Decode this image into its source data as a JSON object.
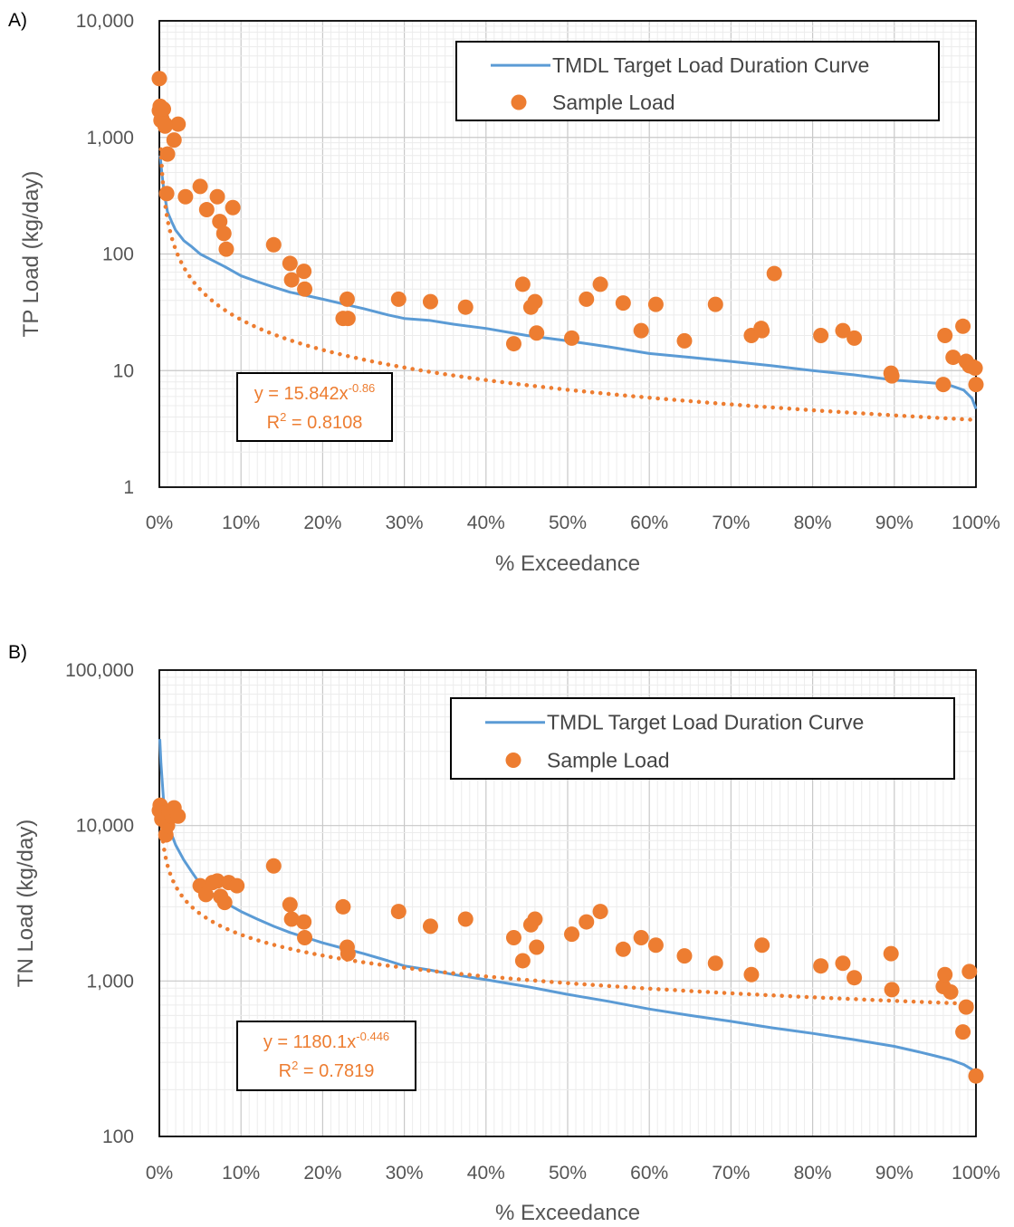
{
  "colors": {
    "curve": "#5B9BD5",
    "sample": "#ED7D31",
    "grid": "#d9d9d9",
    "border": "#000000",
    "text": "#555555"
  },
  "chart_data": [
    {
      "type": "scatter",
      "panel_label": "A)",
      "xlabel": "% Exceedance",
      "ylabel": "TP Load (kg/day)",
      "xlim": [
        0,
        100
      ],
      "ylim": [
        1,
        10000
      ],
      "yscale": "log",
      "grid": true,
      "x_ticks": [
        "0%",
        "10%",
        "20%",
        "30%",
        "40%",
        "50%",
        "60%",
        "70%",
        "80%",
        "90%",
        "100%"
      ],
      "y_ticks": [
        "1",
        "10",
        "100",
        "1,000",
        "10,000"
      ],
      "legend": {
        "position": "top-right",
        "entries": [
          "TMDL Target Load Duration Curve",
          "Sample Load"
        ]
      },
      "equation": {
        "prefix": "y = 15.842x",
        "exponent": "-0.86",
        "r2_prefix": "R",
        "r2_exp": "2",
        "r2_value": " = 0.8108"
      },
      "trendline": {
        "a": 15.842,
        "b": -0.86
      },
      "series": [
        {
          "name": "TMDL Target Load Duration Curve",
          "kind": "line",
          "x": [
            0.1,
            0.3,
            0.6,
            1,
            1.5,
            2,
            3,
            4,
            5,
            6,
            8,
            10,
            12,
            14,
            16,
            18,
            20,
            22,
            25,
            28,
            30,
            33,
            36,
            40,
            45,
            50,
            55,
            60,
            65,
            70,
            75,
            80,
            85,
            90,
            93,
            95,
            97,
            98.5,
            99.5,
            100
          ],
          "y": [
            700,
            500,
            330,
            230,
            190,
            160,
            130,
            115,
            100,
            92,
            78,
            65,
            58,
            52,
            47,
            44,
            41,
            38,
            34,
            30,
            28,
            27,
            25,
            23,
            20,
            18,
            16,
            14,
            13,
            12,
            11,
            10,
            9.2,
            8.3,
            8,
            7.8,
            7.4,
            6.8,
            5.8,
            4.7
          ]
        },
        {
          "name": "Sample Load",
          "kind": "points",
          "x": [
            0,
            0,
            0.1,
            0.2,
            0.3,
            0.5,
            0.7,
            0.9,
            1,
            1.8,
            2.3,
            0.7,
            3.2,
            5,
            5.8,
            7.1,
            7.4,
            7.9,
            8.2,
            9,
            14,
            16,
            16.2,
            17.7,
            17.8,
            22.5,
            23,
            23.1,
            29.3,
            33.2,
            37.5,
            43.4,
            44.5,
            45.5,
            46,
            46.2,
            50.5,
            52.3,
            54,
            56.8,
            59,
            60.8,
            64.3,
            68.1,
            72.5,
            73.7,
            73.8,
            75.3,
            81,
            83.7,
            85.1,
            89.6,
            89.7,
            96,
            96.2,
            97.2,
            98.4,
            98.8,
            99.2,
            99.6,
            99.9,
            100
          ],
          "y": [
            3200,
            1700,
            1850,
            1400,
            1450,
            1750,
            1250,
            330,
            720,
            950,
            1300,
            1300,
            310,
            380,
            240,
            310,
            190,
            150,
            110,
            250,
            120,
            83,
            60,
            71,
            50,
            28,
            41,
            28,
            41,
            39,
            35,
            17,
            55,
            35,
            39,
            21,
            19,
            41,
            55,
            38,
            22,
            37,
            18,
            37,
            20,
            23,
            22,
            68,
            20,
            22,
            19,
            9.5,
            9,
            7.6,
            20,
            13,
            24,
            12,
            11,
            10.8,
            10.5,
            7.6
          ]
        }
      ]
    },
    {
      "type": "scatter",
      "panel_label": "B)",
      "xlabel": "% Exceedance",
      "ylabel": "TN Load (kg/day)",
      "xlim": [
        0,
        100
      ],
      "ylim": [
        100,
        100000
      ],
      "yscale": "log",
      "grid": true,
      "x_ticks": [
        "0%",
        "10%",
        "20%",
        "30%",
        "40%",
        "50%",
        "60%",
        "70%",
        "80%",
        "90%",
        "100%"
      ],
      "y_ticks": [
        "100",
        "1,000",
        "10,000",
        "100,000"
      ],
      "legend": {
        "position": "top-right",
        "entries": [
          "TMDL Target Load Duration Curve",
          "Sample Load"
        ]
      },
      "equation": {
        "prefix": "y = 1180.1x",
        "exponent": "-0.446",
        "r2_prefix": "R",
        "r2_exp": "2",
        "r2_value": " = 0.7819"
      },
      "trendline": {
        "a": 1180.1,
        "b": -0.446
      },
      "series": [
        {
          "name": "TMDL Target Load Duration Curve",
          "kind": "line",
          "x": [
            0.05,
            0.2,
            0.5,
            1,
            1.5,
            2,
            3,
            4,
            5,
            6,
            8,
            10,
            12,
            14,
            16,
            18,
            20,
            22,
            25,
            28,
            30,
            33,
            36,
            40,
            45,
            50,
            55,
            60,
            65,
            70,
            75,
            80,
            85,
            90,
            93,
            95,
            97,
            98.5,
            99.5,
            100
          ],
          "y": [
            36000,
            25000,
            15000,
            10500,
            8800,
            7500,
            6000,
            5000,
            4200,
            3800,
            3200,
            2800,
            2500,
            2250,
            2050,
            1900,
            1760,
            1650,
            1500,
            1350,
            1250,
            1180,
            1100,
            1020,
            920,
            820,
            740,
            660,
            600,
            550,
            500,
            460,
            420,
            380,
            350,
            330,
            310,
            290,
            270,
            245
          ]
        },
        {
          "name": "Sample Load",
          "kind": "points",
          "x": [
            0,
            0.1,
            0.3,
            0.5,
            0.8,
            1,
            1.2,
            1.5,
            1.8,
            2.3,
            5,
            5.7,
            6.5,
            7.1,
            7.5,
            8,
            8.5,
            9.5,
            14,
            16,
            16.2,
            17.7,
            17.8,
            22.5,
            23,
            23.1,
            29.3,
            33.2,
            37.5,
            43.4,
            44.5,
            45.5,
            46,
            46.2,
            50.5,
            52.3,
            54,
            56.8,
            59,
            60.8,
            64.3,
            68.1,
            72.5,
            73.8,
            81,
            83.7,
            85.1,
            89.6,
            89.7,
            96,
            96.2,
            96.9,
            98.4,
            98.8,
            99.2,
            100
          ],
          "y": [
            12500,
            13500,
            11000,
            12000,
            8700,
            10000,
            12000,
            11500,
            13000,
            11500,
            4100,
            3600,
            4300,
            4400,
            3500,
            3200,
            4300,
            4100,
            5500,
            3100,
            2500,
            2400,
            1900,
            3000,
            1650,
            1500,
            2800,
            2250,
            2500,
            1900,
            1350,
            2300,
            2500,
            1650,
            2000,
            2400,
            2800,
            1600,
            1900,
            1700,
            1450,
            1300,
            1100,
            1700,
            1250,
            1300,
            1050,
            1500,
            880,
            920,
            1100,
            850,
            470,
            680,
            1150,
            245
          ]
        }
      ]
    }
  ]
}
